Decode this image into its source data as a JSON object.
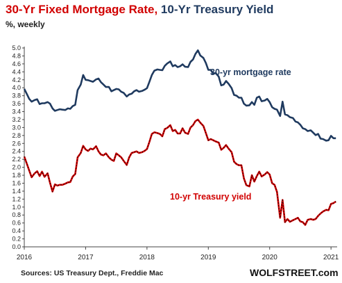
{
  "title": {
    "part1": "30-Yr Fixed Mortgage Rate",
    "separator": ", ",
    "part2": "10-Yr Treasury Yield"
  },
  "subtitle": "%, weekly",
  "source": "Sources: US Treasury Dept., Freddie Mac",
  "brand": "WOLFSTREET.com",
  "colors": {
    "mortgage": "#1f3a5f",
    "treasury": "#d10000",
    "grid": "#d9d9d9",
    "axis": "#444444"
  },
  "chart_data": {
    "type": "line",
    "title": "30-Yr Fixed Mortgage Rate, 10-Yr Treasury Yield",
    "ylabel": "%, weekly",
    "xlabel": "",
    "ylim": [
      0,
      5.0
    ],
    "xlim": [
      2016.0,
      2021.1
    ],
    "yticks": [
      "0.0",
      "0.2",
      "0.4",
      "0.6",
      "0.8",
      "1.0",
      "1.2",
      "1.4",
      "1.6",
      "1.8",
      "2.0",
      "2.2",
      "2.4",
      "2.6",
      "2.8",
      "3.0",
      "3.2",
      "3.4",
      "3.6",
      "3.8",
      "4.0",
      "4.2",
      "4.4",
      "4.6",
      "4.8",
      "5.0"
    ],
    "xticks": [
      {
        "value": 2016,
        "label": "2016"
      },
      {
        "value": 2017,
        "label": "2017"
      },
      {
        "value": 2018,
        "label": "2018"
      },
      {
        "value": 2019,
        "label": "2019"
      },
      {
        "value": 2020,
        "label": "2020"
      },
      {
        "value": 2021,
        "label": "2021"
      }
    ],
    "grid": false,
    "series": [
      {
        "name": "30-yr mortgage rate",
        "points": [
          [
            2016.0,
            3.97
          ],
          [
            2016.04,
            3.85
          ],
          [
            2016.08,
            3.72
          ],
          [
            2016.12,
            3.65
          ],
          [
            2016.17,
            3.69
          ],
          [
            2016.21,
            3.71
          ],
          [
            2016.25,
            3.59
          ],
          [
            2016.29,
            3.61
          ],
          [
            2016.33,
            3.61
          ],
          [
            2016.38,
            3.64
          ],
          [
            2016.42,
            3.6
          ],
          [
            2016.46,
            3.48
          ],
          [
            2016.5,
            3.42
          ],
          [
            2016.54,
            3.44
          ],
          [
            2016.58,
            3.46
          ],
          [
            2016.62,
            3.45
          ],
          [
            2016.67,
            3.44
          ],
          [
            2016.71,
            3.48
          ],
          [
            2016.75,
            3.47
          ],
          [
            2016.79,
            3.54
          ],
          [
            2016.83,
            3.57
          ],
          [
            2016.87,
            3.94
          ],
          [
            2016.92,
            4.08
          ],
          [
            2016.96,
            4.32
          ],
          [
            2017.0,
            4.2
          ],
          [
            2017.04,
            4.19
          ],
          [
            2017.08,
            4.17
          ],
          [
            2017.12,
            4.15
          ],
          [
            2017.17,
            4.21
          ],
          [
            2017.21,
            4.23
          ],
          [
            2017.25,
            4.14
          ],
          [
            2017.29,
            4.08
          ],
          [
            2017.33,
            4.02
          ],
          [
            2017.38,
            4.02
          ],
          [
            2017.42,
            3.91
          ],
          [
            2017.46,
            3.94
          ],
          [
            2017.5,
            3.97
          ],
          [
            2017.54,
            3.96
          ],
          [
            2017.58,
            3.9
          ],
          [
            2017.62,
            3.87
          ],
          [
            2017.67,
            3.78
          ],
          [
            2017.71,
            3.83
          ],
          [
            2017.75,
            3.85
          ],
          [
            2017.79,
            3.91
          ],
          [
            2017.83,
            3.94
          ],
          [
            2017.87,
            3.9
          ],
          [
            2017.92,
            3.92
          ],
          [
            2017.96,
            3.95
          ],
          [
            2018.0,
            3.99
          ],
          [
            2018.04,
            4.15
          ],
          [
            2018.08,
            4.32
          ],
          [
            2018.12,
            4.43
          ],
          [
            2018.17,
            4.46
          ],
          [
            2018.21,
            4.45
          ],
          [
            2018.25,
            4.44
          ],
          [
            2018.29,
            4.55
          ],
          [
            2018.33,
            4.61
          ],
          [
            2018.38,
            4.66
          ],
          [
            2018.42,
            4.54
          ],
          [
            2018.46,
            4.57
          ],
          [
            2018.5,
            4.52
          ],
          [
            2018.54,
            4.54
          ],
          [
            2018.58,
            4.59
          ],
          [
            2018.62,
            4.53
          ],
          [
            2018.67,
            4.52
          ],
          [
            2018.71,
            4.65
          ],
          [
            2018.75,
            4.71
          ],
          [
            2018.79,
            4.85
          ],
          [
            2018.83,
            4.94
          ],
          [
            2018.87,
            4.81
          ],
          [
            2018.92,
            4.75
          ],
          [
            2018.96,
            4.62
          ],
          [
            2019.0,
            4.45
          ],
          [
            2019.04,
            4.45
          ],
          [
            2019.08,
            4.35
          ],
          [
            2019.12,
            4.37
          ],
          [
            2019.17,
            4.28
          ],
          [
            2019.21,
            4.06
          ],
          [
            2019.25,
            4.08
          ],
          [
            2019.29,
            4.17
          ],
          [
            2019.33,
            4.1
          ],
          [
            2019.38,
            3.99
          ],
          [
            2019.42,
            3.82
          ],
          [
            2019.46,
            3.8
          ],
          [
            2019.5,
            3.75
          ],
          [
            2019.54,
            3.75
          ],
          [
            2019.58,
            3.6
          ],
          [
            2019.62,
            3.55
          ],
          [
            2019.67,
            3.56
          ],
          [
            2019.71,
            3.64
          ],
          [
            2019.75,
            3.57
          ],
          [
            2019.79,
            3.75
          ],
          [
            2019.83,
            3.78
          ],
          [
            2019.87,
            3.66
          ],
          [
            2019.92,
            3.68
          ],
          [
            2019.96,
            3.72
          ],
          [
            2020.0,
            3.64
          ],
          [
            2020.04,
            3.51
          ],
          [
            2020.08,
            3.47
          ],
          [
            2020.12,
            3.45
          ],
          [
            2020.17,
            3.29
          ],
          [
            2020.21,
            3.65
          ],
          [
            2020.25,
            3.33
          ],
          [
            2020.29,
            3.31
          ],
          [
            2020.33,
            3.26
          ],
          [
            2020.38,
            3.24
          ],
          [
            2020.42,
            3.15
          ],
          [
            2020.46,
            3.13
          ],
          [
            2020.5,
            3.07
          ],
          [
            2020.54,
            2.98
          ],
          [
            2020.58,
            2.96
          ],
          [
            2020.62,
            2.91
          ],
          [
            2020.67,
            2.93
          ],
          [
            2020.71,
            2.87
          ],
          [
            2020.75,
            2.81
          ],
          [
            2020.79,
            2.84
          ],
          [
            2020.83,
            2.72
          ],
          [
            2020.87,
            2.71
          ],
          [
            2020.92,
            2.67
          ],
          [
            2020.96,
            2.68
          ],
          [
            2021.0,
            2.79
          ],
          [
            2021.04,
            2.73
          ],
          [
            2021.08,
            2.73
          ]
        ]
      },
      {
        "name": "10-yr Treasury yield",
        "points": [
          [
            2016.0,
            2.27
          ],
          [
            2016.04,
            2.1
          ],
          [
            2016.08,
            1.92
          ],
          [
            2016.12,
            1.75
          ],
          [
            2016.17,
            1.85
          ],
          [
            2016.21,
            1.9
          ],
          [
            2016.25,
            1.78
          ],
          [
            2016.29,
            1.89
          ],
          [
            2016.33,
            1.76
          ],
          [
            2016.38,
            1.85
          ],
          [
            2016.42,
            1.61
          ],
          [
            2016.46,
            1.39
          ],
          [
            2016.5,
            1.57
          ],
          [
            2016.54,
            1.54
          ],
          [
            2016.58,
            1.56
          ],
          [
            2016.62,
            1.56
          ],
          [
            2016.67,
            1.59
          ],
          [
            2016.71,
            1.62
          ],
          [
            2016.75,
            1.63
          ],
          [
            2016.79,
            1.77
          ],
          [
            2016.83,
            1.83
          ],
          [
            2016.87,
            2.25
          ],
          [
            2016.92,
            2.36
          ],
          [
            2016.96,
            2.54
          ],
          [
            2017.0,
            2.45
          ],
          [
            2017.04,
            2.41
          ],
          [
            2017.08,
            2.47
          ],
          [
            2017.12,
            2.45
          ],
          [
            2017.17,
            2.53
          ],
          [
            2017.21,
            2.4
          ],
          [
            2017.25,
            2.32
          ],
          [
            2017.29,
            2.3
          ],
          [
            2017.33,
            2.35
          ],
          [
            2017.38,
            2.25
          ],
          [
            2017.42,
            2.19
          ],
          [
            2017.46,
            2.16
          ],
          [
            2017.5,
            2.35
          ],
          [
            2017.54,
            2.3
          ],
          [
            2017.58,
            2.25
          ],
          [
            2017.62,
            2.16
          ],
          [
            2017.67,
            2.06
          ],
          [
            2017.71,
            2.25
          ],
          [
            2017.75,
            2.36
          ],
          [
            2017.79,
            2.38
          ],
          [
            2017.83,
            2.4
          ],
          [
            2017.87,
            2.36
          ],
          [
            2017.92,
            2.38
          ],
          [
            2017.96,
            2.41
          ],
          [
            2018.0,
            2.46
          ],
          [
            2018.04,
            2.64
          ],
          [
            2018.08,
            2.84
          ],
          [
            2018.12,
            2.88
          ],
          [
            2018.17,
            2.86
          ],
          [
            2018.21,
            2.84
          ],
          [
            2018.25,
            2.78
          ],
          [
            2018.29,
            2.96
          ],
          [
            2018.33,
            2.99
          ],
          [
            2018.38,
            3.06
          ],
          [
            2018.42,
            2.91
          ],
          [
            2018.46,
            2.94
          ],
          [
            2018.5,
            2.85
          ],
          [
            2018.54,
            2.85
          ],
          [
            2018.58,
            2.98
          ],
          [
            2018.62,
            2.87
          ],
          [
            2018.67,
            2.84
          ],
          [
            2018.71,
            3.0
          ],
          [
            2018.75,
            3.06
          ],
          [
            2018.79,
            3.16
          ],
          [
            2018.83,
            3.2
          ],
          [
            2018.87,
            3.12
          ],
          [
            2018.92,
            3.04
          ],
          [
            2018.96,
            2.86
          ],
          [
            2019.0,
            2.68
          ],
          [
            2019.04,
            2.71
          ],
          [
            2019.08,
            2.68
          ],
          [
            2019.12,
            2.65
          ],
          [
            2019.17,
            2.62
          ],
          [
            2019.21,
            2.44
          ],
          [
            2019.25,
            2.49
          ],
          [
            2019.29,
            2.56
          ],
          [
            2019.33,
            2.47
          ],
          [
            2019.38,
            2.38
          ],
          [
            2019.42,
            2.14
          ],
          [
            2019.46,
            2.08
          ],
          [
            2019.5,
            2.05
          ],
          [
            2019.54,
            2.05
          ],
          [
            2019.58,
            1.72
          ],
          [
            2019.62,
            1.55
          ],
          [
            2019.67,
            1.52
          ],
          [
            2019.71,
            1.8
          ],
          [
            2019.75,
            1.64
          ],
          [
            2019.79,
            1.78
          ],
          [
            2019.83,
            1.89
          ],
          [
            2019.87,
            1.77
          ],
          [
            2019.92,
            1.82
          ],
          [
            2019.96,
            1.88
          ],
          [
            2020.0,
            1.82
          ],
          [
            2020.04,
            1.6
          ],
          [
            2020.08,
            1.56
          ],
          [
            2020.12,
            1.38
          ],
          [
            2020.17,
            0.73
          ],
          [
            2020.21,
            1.18
          ],
          [
            2020.25,
            0.62
          ],
          [
            2020.29,
            0.7
          ],
          [
            2020.33,
            0.63
          ],
          [
            2020.38,
            0.67
          ],
          [
            2020.42,
            0.7
          ],
          [
            2020.46,
            0.73
          ],
          [
            2020.5,
            0.64
          ],
          [
            2020.54,
            0.62
          ],
          [
            2020.58,
            0.55
          ],
          [
            2020.62,
            0.68
          ],
          [
            2020.67,
            0.7
          ],
          [
            2020.71,
            0.68
          ],
          [
            2020.75,
            0.7
          ],
          [
            2020.79,
            0.78
          ],
          [
            2020.83,
            0.84
          ],
          [
            2020.87,
            0.89
          ],
          [
            2020.92,
            0.93
          ],
          [
            2020.96,
            0.92
          ],
          [
            2021.0,
            1.08
          ],
          [
            2021.04,
            1.1
          ],
          [
            2021.08,
            1.14
          ]
        ]
      }
    ],
    "annotations": [
      {
        "text": "30-yr mortgage rate",
        "series": 0
      },
      {
        "text": "10-yr Treasury yield",
        "series": 1
      }
    ]
  }
}
